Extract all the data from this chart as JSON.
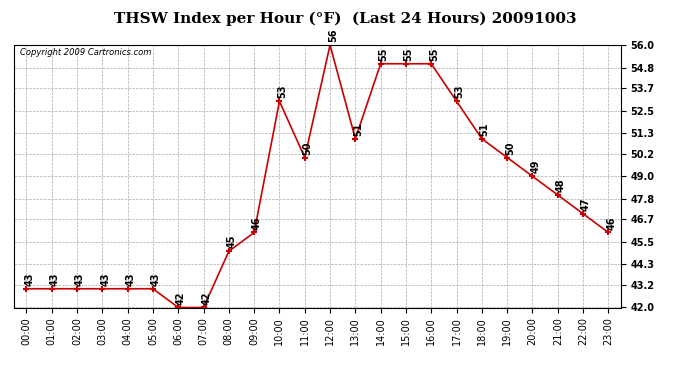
{
  "title": "THSW Index per Hour (°F)  (Last 24 Hours) 20091003",
  "copyright": "Copyright 2009 Cartronics.com",
  "hours": [
    "00:00",
    "01:00",
    "02:00",
    "03:00",
    "04:00",
    "05:00",
    "06:00",
    "07:00",
    "08:00",
    "09:00",
    "10:00",
    "11:00",
    "12:00",
    "13:00",
    "14:00",
    "15:00",
    "16:00",
    "17:00",
    "18:00",
    "19:00",
    "20:00",
    "21:00",
    "22:00",
    "23:00"
  ],
  "values": [
    43,
    43,
    43,
    43,
    43,
    43,
    42,
    42,
    45,
    46,
    53,
    50,
    56,
    51,
    55,
    55,
    55,
    53,
    51,
    50,
    49,
    48,
    47,
    46
  ],
  "ylim": [
    42.0,
    56.0
  ],
  "yticks": [
    42.0,
    43.2,
    44.3,
    45.5,
    46.7,
    47.8,
    49.0,
    50.2,
    51.3,
    52.5,
    53.7,
    54.8,
    56.0
  ],
  "line_color": "#cc0000",
  "marker_color": "#cc0000",
  "grid_color": "#aaaaaa",
  "bg_color": "#ffffff",
  "title_fontsize": 11,
  "annotation_fontsize": 7,
  "tick_fontsize": 7
}
